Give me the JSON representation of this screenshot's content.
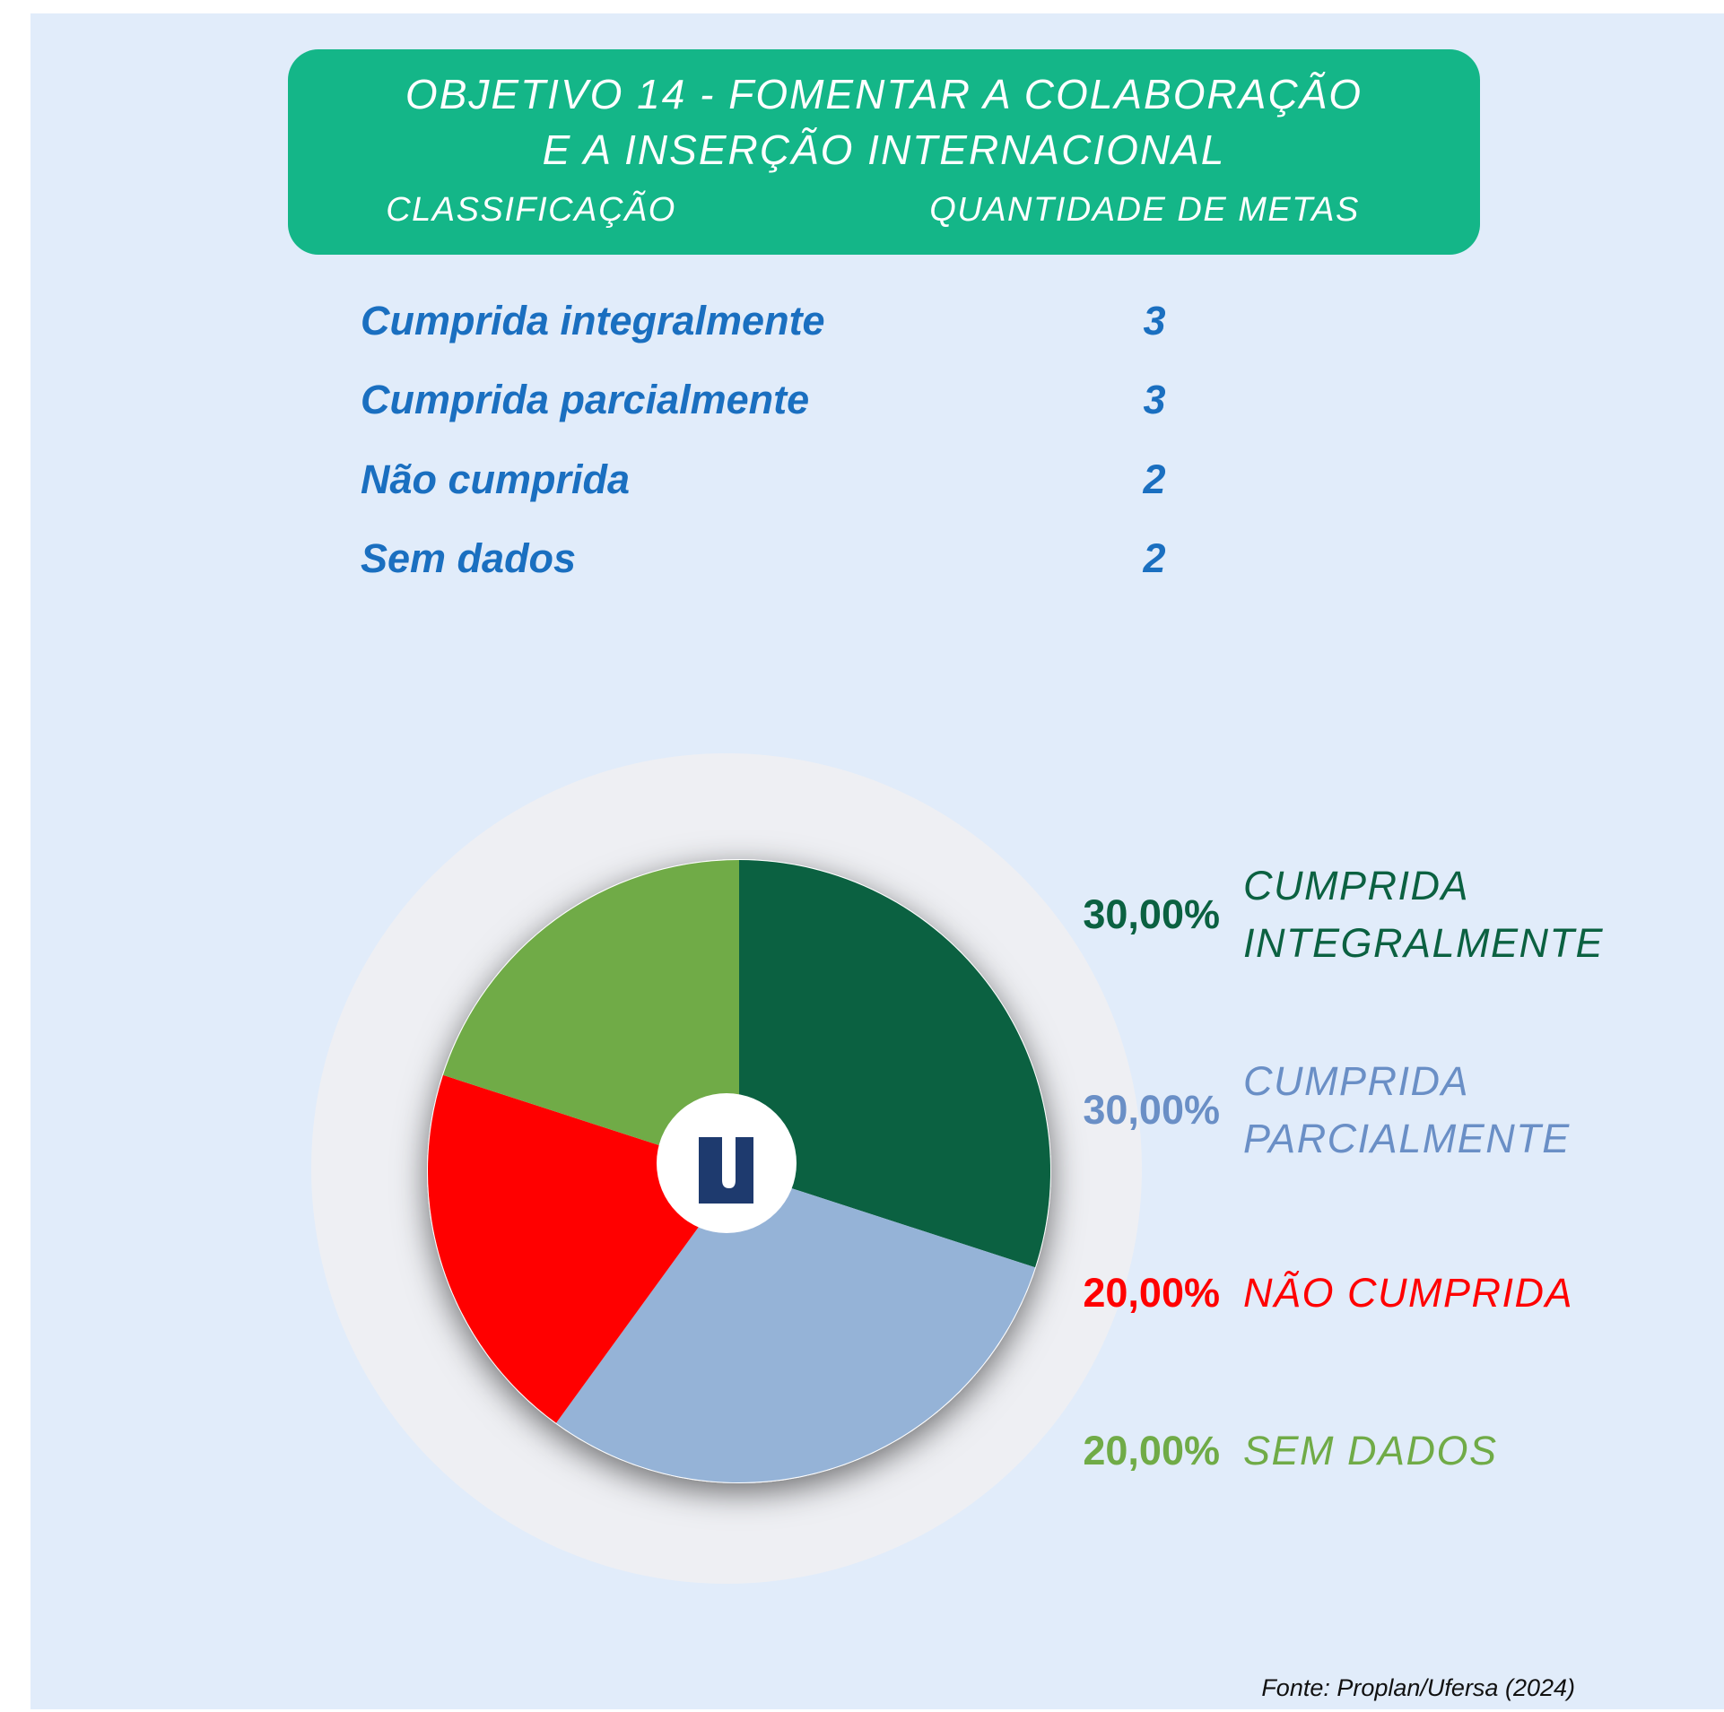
{
  "header": {
    "title": [
      "OBJETIVO 14 - FOMENTAR A COLABORAÇÃO",
      "E A INSERÇÃO INTERNACIONAL"
    ],
    "columns": [
      "CLASSIFICAÇÃO",
      "QUANTIDADE DE METAS"
    ]
  },
  "table": {
    "rows": [
      [
        "Cumprida integralmente",
        "3"
      ],
      [
        "Cumprida parcialmente",
        "3"
      ],
      [
        "Não cumprida",
        "2"
      ],
      [
        "Sem dados",
        "2"
      ]
    ]
  },
  "chart_data": {
    "type": "pie",
    "categories": [
      "CUMPRIDA INTEGRALMENTE",
      "CUMPRIDA PARCIALMENTE",
      "NÃO CUMPRIDA",
      "SEM DADOS"
    ],
    "values": [
      30,
      30,
      20,
      20
    ],
    "value_labels": [
      "30,00%",
      "30,00%",
      "20,00%",
      "20,00%"
    ],
    "colors": [
      "#0b6141",
      "#95b3d7",
      "#ff0000",
      "#70ab47"
    ],
    "label_colors": [
      "#0b6141",
      "#6a8fc6",
      "#ff0000",
      "#70ab47"
    ]
  },
  "source": "Fonte: Proplan/Ufersa (2024)"
}
